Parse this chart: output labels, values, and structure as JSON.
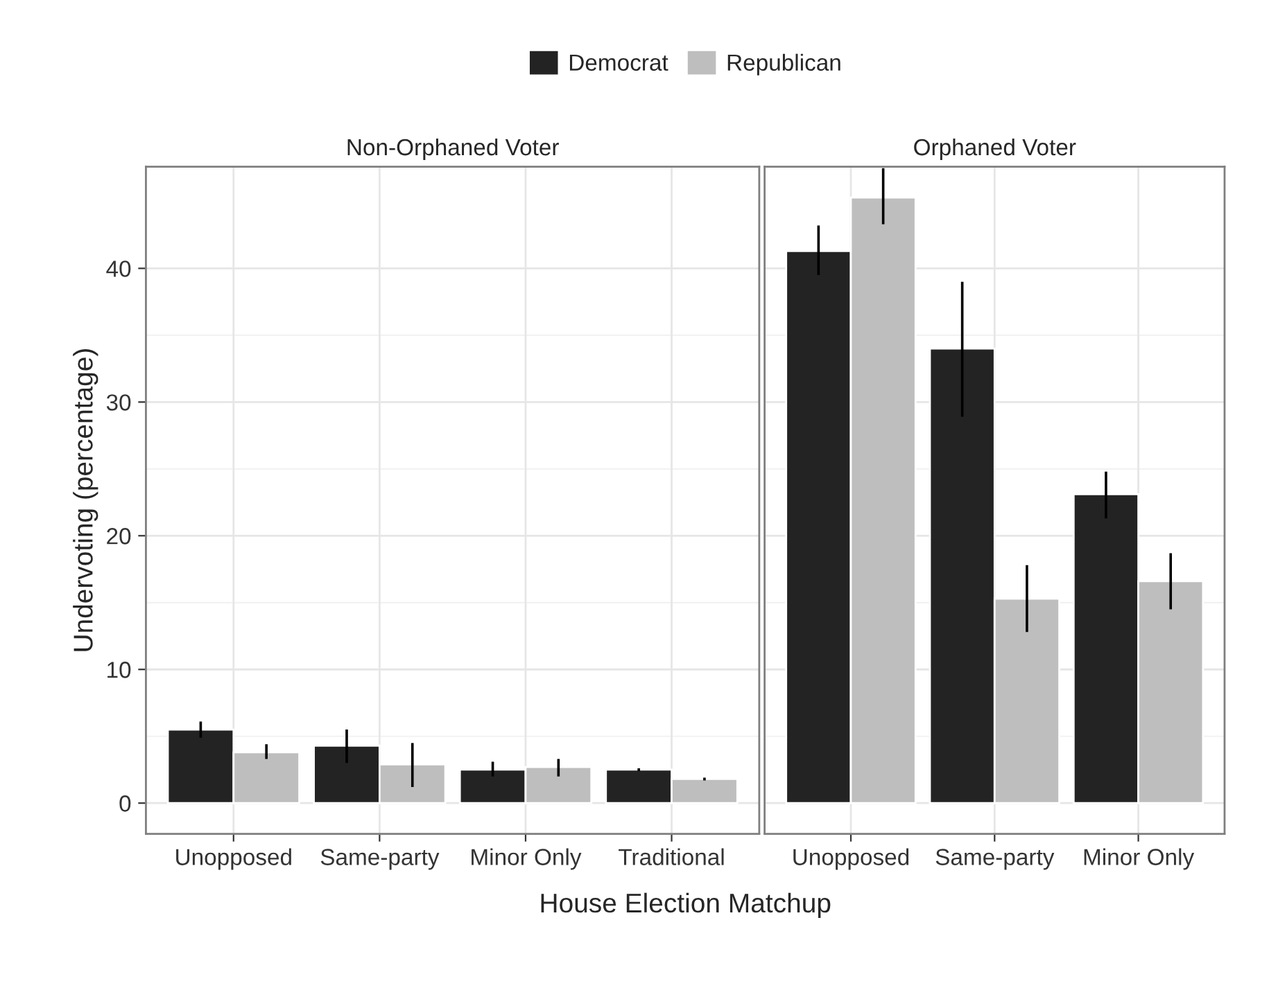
{
  "chart_data": [
    {
      "type": "bar",
      "title": "Non-Orphaned Voter",
      "xlabel": "House Election Matchup",
      "ylabel": "Undervoting (percentage)",
      "categories": [
        "Unopposed",
        "Same-party",
        "Minor Only",
        "Traditional"
      ],
      "series": [
        {
          "name": "Democrat",
          "color": "#232323",
          "values": [
            5.5,
            4.3,
            2.5,
            2.5
          ],
          "errors": [
            [
              4.9,
              6.1
            ],
            [
              3.0,
              5.5
            ],
            [
              2.0,
              3.1
            ],
            [
              2.4,
              2.6
            ]
          ]
        },
        {
          "name": "Republican",
          "color": "#bebebe",
          "values": [
            3.8,
            2.9,
            2.7,
            1.8
          ],
          "errors": [
            [
              3.3,
              4.4
            ],
            [
              1.2,
              4.5
            ],
            [
              2.0,
              3.3
            ],
            [
              1.7,
              1.9
            ]
          ]
        }
      ],
      "ylim": [
        -2.3,
        47.6
      ],
      "yticks": [
        0,
        10,
        20,
        30,
        40
      ],
      "grid": true,
      "legend": "top"
    },
    {
      "type": "bar",
      "title": "Orphaned Voter",
      "categories": [
        "Unopposed",
        "Same-party",
        "Minor Only"
      ],
      "series": [
        {
          "color": "#232323",
          "values": [
            41.3,
            34.0,
            23.1
          ],
          "errors": [
            [
              39.5,
              43.2
            ],
            [
              28.9,
              39.0
            ],
            [
              21.3,
              24.8
            ]
          ]
        },
        {
          "color": "#bebebe",
          "values": [
            45.3,
            15.3,
            16.6
          ],
          "errors": [
            [
              43.3,
              47.5
            ],
            [
              12.8,
              17.8
            ],
            [
              14.5,
              18.7
            ]
          ]
        }
      ],
      "ylim": [
        -2.3,
        47.6
      ],
      "yticks": [
        0,
        10,
        20,
        30,
        40
      ],
      "grid": true,
      "tick_labels": "x"
    }
  ]
}
